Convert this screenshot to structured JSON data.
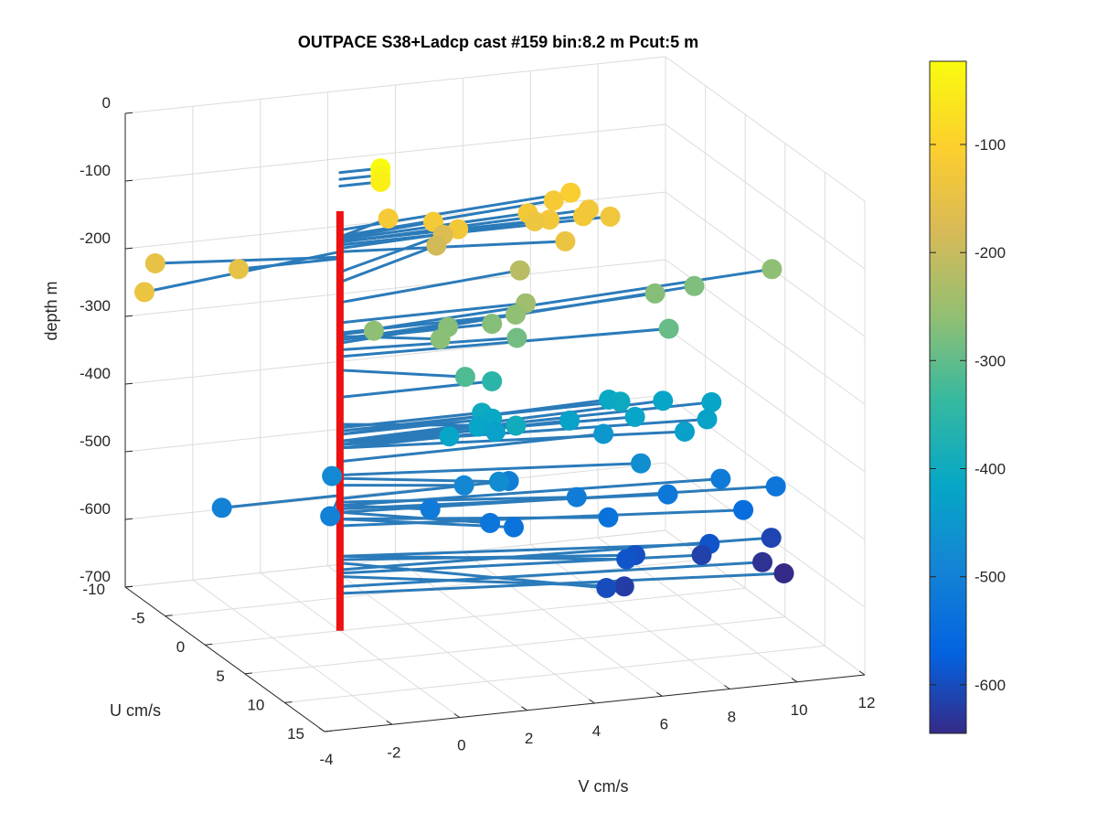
{
  "chart_data": {
    "type": "scatter",
    "title": "OUTPACE S38+Ladcp cast #159 bin:8.2 m  Pcut:5 m",
    "xlabel": "V cm/s",
    "ylabel": "U cm/s",
    "zlabel": "depth m",
    "xlim": [
      -4,
      12
    ],
    "ylim": [
      -10,
      15
    ],
    "zlim": [
      -700,
      0
    ],
    "x_ticks": [
      "-4",
      "-2",
      "0",
      "2",
      "4",
      "6",
      "8",
      "10",
      "12"
    ],
    "y_ticks": [
      "-10",
      "-5",
      "0",
      "5",
      "10",
      "15"
    ],
    "z_ticks": [
      "0",
      "-100",
      "-200",
      "-300",
      "-400",
      "-500",
      "-600",
      "-700"
    ],
    "grid": true,
    "colorbar": {
      "ticks": [
        "-100",
        "-200",
        "-300",
        "-400",
        "-500",
        "-600"
      ],
      "range": [
        -645,
        -23
      ],
      "colormap": "parula"
    },
    "mast": {
      "color": "#ee1111",
      "depth_top": -80,
      "depth_bottom": -700
    },
    "vectors": [
      {
        "u": 0,
        "v": 1.2,
        "depth": -23
      },
      {
        "u": 0,
        "v": 1.2,
        "depth": -33
      },
      {
        "u": 0,
        "v": 1.2,
        "depth": -43
      },
      {
        "u": 3,
        "v": -6.5,
        "depth": -140
      },
      {
        "u": -2,
        "v": -5,
        "depth": -148
      },
      {
        "u": 0,
        "v": -3,
        "depth": -150
      },
      {
        "u": -2,
        "v": 1.9,
        "depth": -118
      },
      {
        "u": -1,
        "v": 3.0,
        "depth": -120
      },
      {
        "u": 0,
        "v": 3.5,
        "depth": -125
      },
      {
        "u": -1,
        "v": 5.8,
        "depth": -122
      },
      {
        "u": 0,
        "v": 6.2,
        "depth": -125
      },
      {
        "u": -2,
        "v": 6.8,
        "depth": -117
      },
      {
        "u": 0,
        "v": 7.2,
        "depth": -125
      },
      {
        "u": -2,
        "v": 7.3,
        "depth": -108
      },
      {
        "u": -1,
        "v": 7.6,
        "depth": -126
      },
      {
        "u": 0,
        "v": 8.0,
        "depth": -130
      },
      {
        "u": -1,
        "v": 6.0,
        "depth": -135
      },
      {
        "u": 2,
        "v": 6.2,
        "depth": -140
      },
      {
        "u": -4,
        "v": 4.0,
        "depth": -170
      },
      {
        "u": -4,
        "v": 3.8,
        "depth": -185
      },
      {
        "u": -2,
        "v": 5.8,
        "depth": -215
      },
      {
        "u": 0,
        "v": 5.5,
        "depth": -245
      },
      {
        "u": 0,
        "v": 5.2,
        "depth": -260
      },
      {
        "u": 0,
        "v": 1.0,
        "depth": -262
      },
      {
        "u": 2,
        "v": 2.5,
        "depth": -265
      },
      {
        "u": 0,
        "v": 3.2,
        "depth": -268
      },
      {
        "u": 0,
        "v": 4.5,
        "depth": -270
      },
      {
        "u": -2,
        "v": 9.8,
        "depth": -270
      },
      {
        "u": 1,
        "v": 9.5,
        "depth": -295
      },
      {
        "u": -3,
        "v": 11.2,
        "depth": -275
      },
      {
        "u": -3,
        "v": 13.5,
        "depth": -262
      },
      {
        "u": 3,
        "v": 3.0,
        "depth": -315
      },
      {
        "u": 1,
        "v": 5.0,
        "depth": -285
      },
      {
        "u": 0,
        "v": 4.5,
        "depth": -355
      },
      {
        "u": 3,
        "v": 4.5,
        "depth": -395
      },
      {
        "u": 0,
        "v": 4.2,
        "depth": -400
      },
      {
        "u": 0,
        "v": 4.5,
        "depth": -410
      },
      {
        "u": 0,
        "v": 4.1,
        "depth": -420
      },
      {
        "u": 0,
        "v": 4.6,
        "depth": -430
      },
      {
        "u": 1,
        "v": 3.0,
        "depth": -420
      },
      {
        "u": 0,
        "v": 6.8,
        "depth": -425
      },
      {
        "u": -1,
        "v": 8.2,
        "depth": -410
      },
      {
        "u": 0,
        "v": 8.3,
        "depth": -405
      },
      {
        "u": 1,
        "v": 8.5,
        "depth": -420
      },
      {
        "u": -1,
        "v": 9.8,
        "depth": -420
      },
      {
        "u": 0,
        "v": 11.0,
        "depth": -420
      },
      {
        "u": 2,
        "v": 10.4,
        "depth": -425
      },
      {
        "u": 3,
        "v": 9.5,
        "depth": -430
      },
      {
        "u": 0,
        "v": 7.8,
        "depth": -450
      },
      {
        "u": 3,
        "v": 8.2,
        "depth": -470
      },
      {
        "u": -1,
        "v": 0.0,
        "depth": -480
      },
      {
        "u": 3,
        "v": -1.0,
        "depth": -500
      },
      {
        "u": 0,
        "v": -3.5,
        "depth": -500
      },
      {
        "u": 2,
        "v": 3.2,
        "depth": -485
      },
      {
        "u": 3,
        "v": 4.0,
        "depth": -475
      },
      {
        "u": 2,
        "v": 2.2,
        "depth": -515
      },
      {
        "u": 0,
        "v": 5.0,
        "depth": -505
      },
      {
        "u": 4,
        "v": 3.5,
        "depth": -525
      },
      {
        "u": 4,
        "v": 4.2,
        "depth": -535
      },
      {
        "u": 3,
        "v": 6.3,
        "depth": -510
      },
      {
        "u": 4,
        "v": 7.0,
        "depth": -535
      },
      {
        "u": 3,
        "v": 9.0,
        "depth": -520
      },
      {
        "u": 2,
        "v": 10.8,
        "depth": -515
      },
      {
        "u": 4,
        "v": 11.0,
        "depth": -545
      },
      {
        "u": 3,
        "v": 12.2,
        "depth": -525
      },
      {
        "u": 5,
        "v": 7.3,
        "depth": -590
      },
      {
        "u": 4,
        "v": 7.8,
        "depth": -595
      },
      {
        "u": 4,
        "v": 10.0,
        "depth": -590
      },
      {
        "u": 8,
        "v": 6.0,
        "depth": -600
      },
      {
        "u": 6,
        "v": 7.0,
        "depth": -620
      },
      {
        "u": 3,
        "v": 10.0,
        "depth": -615
      },
      {
        "u": 2,
        "v": 12.3,
        "depth": -610
      },
      {
        "u": 3,
        "v": 11.8,
        "depth": -635
      },
      {
        "u": 4,
        "v": 12.2,
        "depth": -645
      }
    ]
  }
}
